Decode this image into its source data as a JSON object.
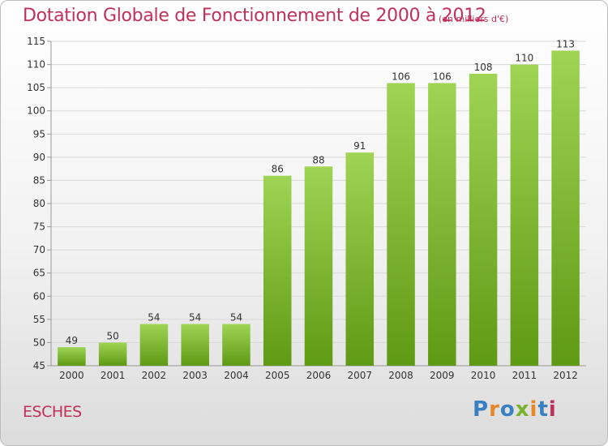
{
  "title": "Dotation Globale de Fonctionnement de 2000 à 2012",
  "subtitle": "(en milliers d'€)",
  "commune": "ESCHES",
  "logo": {
    "text": "Proxiti",
    "colors": [
      "#3a7fc1",
      "#e8862a",
      "#3a7fc1",
      "#7ab22e",
      "#e8862a",
      "#3a7fc1",
      "#c0305a"
    ]
  },
  "colors": {
    "title": "#c0305a",
    "bar_top": "#9fd454",
    "bar_bottom": "#5f9a14",
    "grid": "#d9d9d9",
    "axis_text": "#333333"
  },
  "chart_data": {
    "type": "bar",
    "categories": [
      "2000",
      "2001",
      "2002",
      "2003",
      "2004",
      "2005",
      "2006",
      "2007",
      "2008",
      "2009",
      "2010",
      "2011",
      "2012"
    ],
    "values": [
      49,
      50,
      54,
      54,
      54,
      86,
      88,
      91,
      106,
      106,
      108,
      110,
      113
    ],
    "ylim": [
      45,
      115
    ],
    "yticks": [
      45,
      50,
      55,
      60,
      65,
      70,
      75,
      80,
      85,
      90,
      95,
      100,
      105,
      110,
      115
    ],
    "grid": true,
    "xlabel": "",
    "ylabel": ""
  }
}
